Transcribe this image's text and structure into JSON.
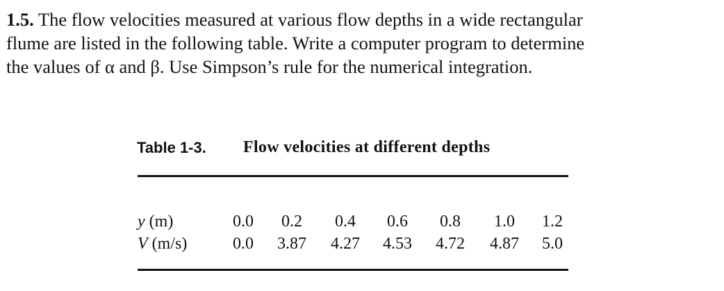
{
  "problem": {
    "number": "1.5.",
    "lines": [
      "The flow velocities measured at various flow depths in a wide rectangular",
      "flume are listed in the following table. Write a computer program to determine",
      "the values of α and β. Use Simpson’s rule for the numerical integration."
    ]
  },
  "table": {
    "label": "Table 1-3.",
    "title": "Flow velocities at different depths",
    "rows": [
      {
        "symbol": "y",
        "unit": "(m)",
        "cells": [
          "0.0",
          "0.2",
          "0.4",
          "0.6",
          "0.8",
          "1.0",
          "1.2"
        ]
      },
      {
        "symbol": "V",
        "unit": "(m/s)",
        "cells": [
          "0.0",
          "3.87",
          "4.27",
          "4.53",
          "4.72",
          "4.87",
          "5.0"
        ]
      }
    ]
  }
}
